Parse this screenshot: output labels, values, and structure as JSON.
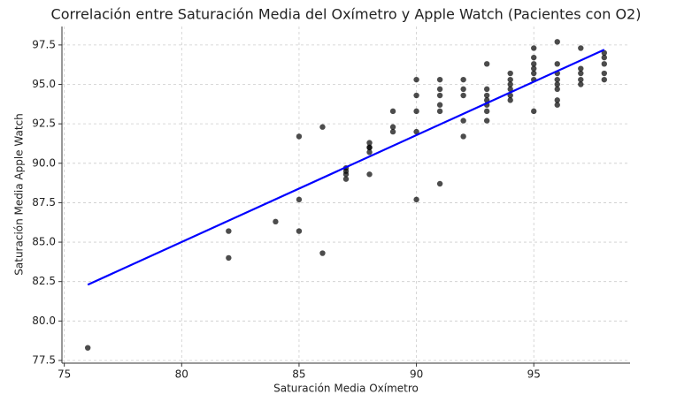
{
  "chart_data": {
    "type": "scatter",
    "title": "Correlación entre Saturación Media del Oxímetro y Apple Watch (Pacientes con O2)",
    "x_label": "Saturación Media Oxímetro",
    "y_label": "Saturación Media Apple Watch",
    "x": [
      76,
      82,
      82,
      84,
      85,
      85,
      85,
      86,
      86,
      87,
      87,
      87,
      87,
      88,
      88,
      88,
      88,
      88,
      89,
      89,
      89,
      90,
      90,
      90,
      90,
      90,
      91,
      91,
      91,
      91,
      91,
      91,
      92,
      92,
      92,
      92,
      92,
      93,
      93,
      93,
      93,
      93,
      93,
      93,
      94,
      94,
      94,
      94,
      94,
      94,
      95,
      95,
      95,
      95,
      95,
      95,
      95,
      96,
      96,
      96,
      96,
      96,
      96,
      96,
      96,
      97,
      97,
      97,
      97,
      97,
      98,
      98,
      98,
      98,
      98
    ],
    "values": [
      78.3,
      85.7,
      84.0,
      86.3,
      91.7,
      87.7,
      85.7,
      92.3,
      84.3,
      89.7,
      89.5,
      89.3,
      89.0,
      91.3,
      91.0,
      91.0,
      90.7,
      89.3,
      93.3,
      92.3,
      92.0,
      95.3,
      94.3,
      93.3,
      92.0,
      87.7,
      95.3,
      94.7,
      94.3,
      93.7,
      93.3,
      88.7,
      95.3,
      94.7,
      94.3,
      92.7,
      91.7,
      96.3,
      94.7,
      94.3,
      94.0,
      93.7,
      93.3,
      92.7,
      95.7,
      95.3,
      95.0,
      94.7,
      94.3,
      94.0,
      97.3,
      96.7,
      96.3,
      96.0,
      95.7,
      95.3,
      93.3,
      97.7,
      96.3,
      95.7,
      95.3,
      95.0,
      94.7,
      94.0,
      93.7,
      97.3,
      96.0,
      95.7,
      95.3,
      95.0,
      97.0,
      96.7,
      96.3,
      95.7,
      95.3
    ],
    "color": "#000000",
    "alpha": 0.7,
    "fit": {
      "type": "line",
      "x": [
        76,
        98
      ],
      "values": [
        82.3,
        97.2
      ],
      "color": "#0000ff"
    },
    "xlim": [
      74.9,
      99.1
    ],
    "ylim": [
      77.33,
      98.67
    ],
    "xticks": [
      75,
      80,
      85,
      90,
      95
    ],
    "yticks": [
      77.5,
      {
        "value": 80,
        "label": "80.0"
      },
      82.5,
      {
        "value": 85,
        "label": "85.0"
      },
      87.5,
      {
        "value": 90,
        "label": "90.0"
      },
      92.5,
      {
        "value": 95,
        "label": "95.0"
      },
      97.5
    ],
    "grid": true
  }
}
